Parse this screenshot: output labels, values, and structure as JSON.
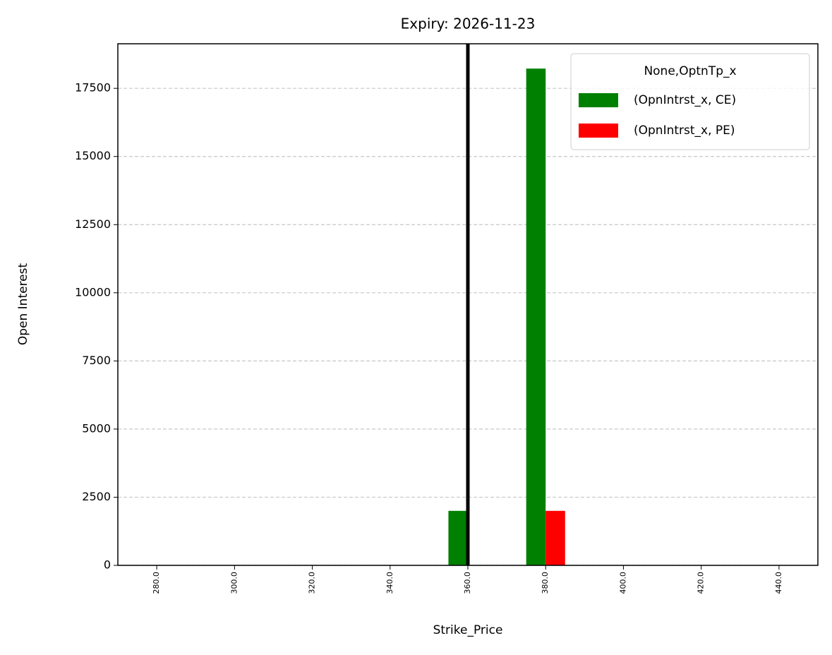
{
  "chart_data": {
    "type": "bar",
    "title": "Expiry: 2026-11-23",
    "x_label": "Strike_Price",
    "y_label": "Open Interest",
    "categories": [
      "280.0",
      "300.0",
      "320.0",
      "340.0",
      "360.0",
      "380.0",
      "400.0",
      "420.0",
      "440.0"
    ],
    "series": [
      {
        "name": "(OpnIntrst_x, CE)",
        "color": "#008000",
        "values": [
          0,
          0,
          0,
          0,
          2000,
          18225,
          0,
          0,
          0
        ]
      },
      {
        "name": "(OpnIntrst_x, PE)",
        "color": "#ff0000",
        "values": [
          0,
          0,
          0,
          0,
          0,
          2000,
          0,
          0,
          0
        ]
      }
    ],
    "legend_title": "None,OptnTp_x",
    "legend_loc": "upper right",
    "vline": {
      "x": "360.0",
      "color": "#000000"
    },
    "ylim": [
      0,
      19136
    ],
    "yticks": [
      0,
      2500,
      5000,
      7500,
      10000,
      12500,
      15000,
      17500
    ],
    "grid": true
  }
}
